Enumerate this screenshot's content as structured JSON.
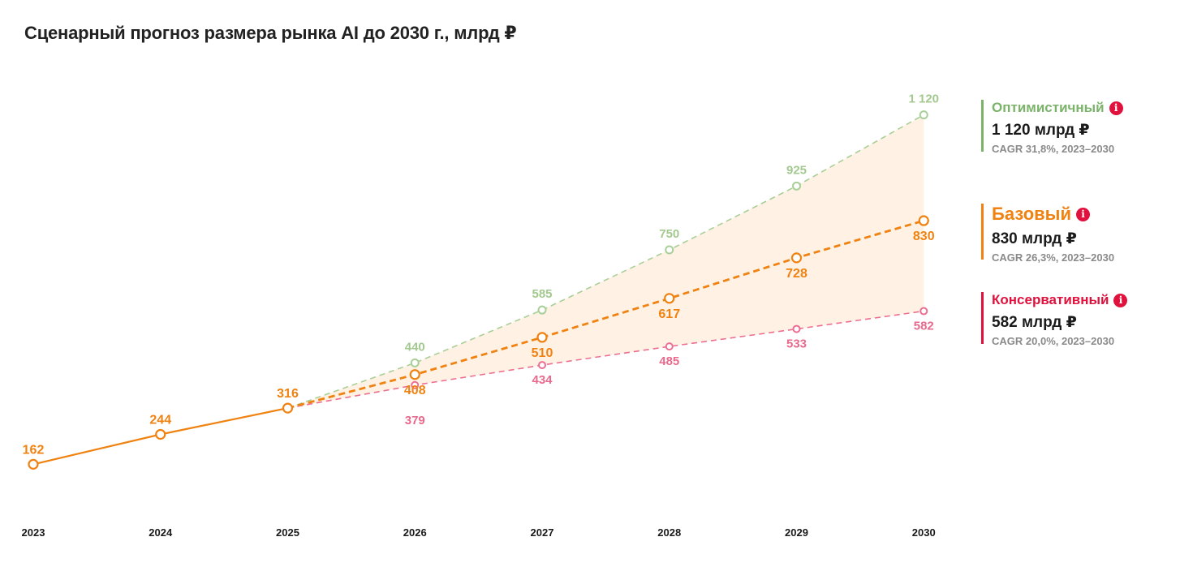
{
  "title": "Сценарный прогноз размера рынка AI до 2030 г., млрд ₽",
  "legend": {
    "optimistic": {
      "name": "Оптимистичный",
      "value": "1 120 млрд ₽",
      "cagr": "CAGR 31,8%, 2023–2030",
      "info_icon": "info-icon"
    },
    "base": {
      "name": "Базовый",
      "value": "830 млрд ₽",
      "cagr": "CAGR 26,3%, 2023–2030",
      "info_icon": "info-icon"
    },
    "conservative": {
      "name": "Консервативный",
      "value": "582 млрд ₽",
      "cagr": "CAGR 20,0%, 2023–2030",
      "info_icon": "info-icon"
    }
  },
  "colors": {
    "base": "#f08211",
    "optimistic": "#a9cf98",
    "optimistic_label": "#a3c98f",
    "conservative": "#ec6f92",
    "conservative_label": "#e86a8c",
    "band": "#fff1e3",
    "info": "#e0113d"
  },
  "chart_data": {
    "type": "line",
    "title": "Сценарный прогноз размера рынка AI до 2030 г., млрд ₽",
    "categories": [
      "2023",
      "2024",
      "2025",
      "2026",
      "2027",
      "2028",
      "2029",
      "2030"
    ],
    "ylim": [
      0,
      1300
    ],
    "grid": false,
    "series": [
      {
        "name": "Базовый",
        "x": [
          "2023",
          "2024",
          "2025",
          "2026",
          "2027",
          "2028",
          "2029",
          "2030"
        ],
        "values": [
          162,
          244,
          316,
          408,
          510,
          617,
          728,
          830
        ],
        "labels": [
          "162",
          "244",
          "316",
          "408",
          "510",
          "617",
          "728",
          "830"
        ],
        "style": "solid-then-dashed",
        "dashed_from": "2025"
      },
      {
        "name": "Оптимистичный",
        "x": [
          "2025",
          "2026",
          "2027",
          "2028",
          "2029",
          "2030"
        ],
        "values": [
          316,
          440,
          585,
          750,
          925,
          1120
        ],
        "labels": [
          "",
          "440",
          "585",
          "750",
          "925",
          "1 120"
        ],
        "style": "dashed"
      },
      {
        "name": "Консервативный",
        "x": [
          "2025",
          "2026",
          "2027",
          "2028",
          "2029",
          "2030"
        ],
        "values": [
          316,
          379,
          434,
          485,
          533,
          582
        ],
        "labels": [
          "",
          "379",
          "434",
          "485",
          "533",
          "582"
        ],
        "style": "dashed"
      }
    ]
  }
}
